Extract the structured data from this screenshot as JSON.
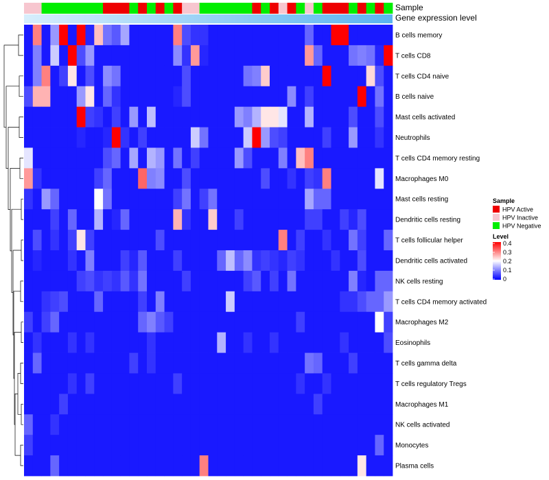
{
  "chart_data": {
    "type": "heatmap",
    "annotations": {
      "sample_track_label": "Sample",
      "expression_track_label": "Gene expression level",
      "sample_groups": [
        "HPV Active",
        "HPV Inactive",
        "HPV Negative"
      ],
      "sample_colors": {
        "HPV Active": "#ee0000",
        "HPV Inactive": "#f7c6cf",
        "HPV Negative": "#00ee00"
      },
      "column_groups": [
        "Inactive",
        "Inactive",
        "Negative",
        "Negative",
        "Negative",
        "Negative",
        "Negative",
        "Negative",
        "Negative",
        "Active",
        "Active",
        "Active",
        "Negative",
        "Active",
        "Negative",
        "Active",
        "Negative",
        "Active",
        "Inactive",
        "Inactive",
        "Negative",
        "Negative",
        "Negative",
        "Negative",
        "Negative",
        "Negative",
        "Active",
        "Negative",
        "Active",
        "Inactive",
        "Active",
        "Negative",
        "Inactive",
        "Negative",
        "Active",
        "Active",
        "Active",
        "Negative",
        "Active",
        "Negative",
        "Active",
        "Negative"
      ]
    },
    "rows": [
      "B cells memory",
      "T cells CD8",
      "T cells CD4 naive",
      "B cells naive",
      "Mast cells activated",
      "Neutrophils",
      "T cells CD4 memory resting",
      "Macrophages M0",
      "Mast cells resting",
      "Dendritic cells resting",
      "T cells follicular helper",
      "Dendritic cells activated",
      "NK cells resting",
      "T cells CD4 memory activated",
      "Macrophages M2",
      "Eosinophils",
      "T cells gamma delta",
      "T cells regulatory  Tregs",
      "Macrophages M1",
      "NK cells activated",
      "Monocytes",
      "Plasma cells"
    ],
    "values": [
      [
        0.02,
        0.3,
        0.02,
        0.12,
        0.4,
        0.02,
        0.4,
        0.03,
        0.25,
        0.09,
        0.07,
        0.13,
        0.02,
        0.02,
        0.02,
        0.02,
        0.02,
        0.3,
        0.06,
        0.04,
        0.04,
        0.02,
        0.02,
        0.02,
        0.02,
        0.02,
        0.02,
        0.02,
        0.02,
        0.02,
        0.02,
        0.02,
        0.08,
        0.02,
        0.02,
        0.4,
        0.4,
        0.02,
        0.02,
        0.02,
        0.02,
        0.02
      ],
      [
        0.02,
        0.1,
        0.02,
        0.16,
        0.02,
        0.4,
        0.06,
        0.12,
        0.02,
        0.02,
        0.02,
        0.02,
        0.02,
        0.02,
        0.02,
        0.02,
        0.02,
        0.11,
        0.04,
        0.28,
        0.03,
        0.02,
        0.02,
        0.02,
        0.02,
        0.02,
        0.02,
        0.02,
        0.02,
        0.02,
        0.02,
        0.02,
        0.28,
        0.08,
        0.02,
        0.02,
        0.02,
        0.09,
        0.1,
        0.09,
        0.03,
        0.4
      ],
      [
        0.02,
        0.1,
        0.3,
        0.02,
        0.05,
        0.22,
        0.02,
        0.06,
        0.02,
        0.11,
        0.09,
        0.02,
        0.02,
        0.02,
        0.02,
        0.02,
        0.02,
        0.02,
        0.06,
        0.02,
        0.02,
        0.02,
        0.02,
        0.02,
        0.02,
        0.09,
        0.1,
        0.24,
        0.02,
        0.02,
        0.02,
        0.02,
        0.02,
        0.02,
        0.4,
        0.02,
        0.02,
        0.02,
        0.02,
        0.23,
        0.06,
        0.02
      ],
      [
        0.06,
        0.26,
        0.26,
        0.02,
        0.02,
        0.02,
        0.12,
        0.22,
        0.02,
        0.08,
        0.04,
        0.02,
        0.02,
        0.02,
        0.02,
        0.02,
        0.02,
        0.03,
        0.06,
        0.02,
        0.02,
        0.02,
        0.02,
        0.02,
        0.02,
        0.02,
        0.02,
        0.02,
        0.02,
        0.02,
        0.11,
        0.02,
        0.05,
        0.02,
        0.02,
        0.02,
        0.02,
        0.02,
        0.4,
        0.02,
        0.09,
        0.02
      ],
      [
        0.02,
        0.02,
        0.02,
        0.02,
        0.02,
        0.02,
        0.4,
        0.05,
        0.04,
        0.02,
        0.05,
        0.02,
        0.12,
        0.02,
        0.15,
        0.02,
        0.02,
        0.02,
        0.02,
        0.02,
        0.02,
        0.02,
        0.02,
        0.02,
        0.12,
        0.1,
        0.14,
        0.22,
        0.22,
        0.18,
        0.02,
        0.02,
        0.14,
        0.02,
        0.02,
        0.02,
        0.02,
        0.06,
        0.02,
        0.02,
        0.06,
        0.02
      ],
      [
        0.02,
        0.02,
        0.02,
        0.02,
        0.02,
        0.02,
        0.03,
        0.02,
        0.02,
        0.03,
        0.4,
        0.04,
        0.02,
        0.05,
        0.02,
        0.02,
        0.02,
        0.02,
        0.02,
        0.16,
        0.09,
        0.02,
        0.02,
        0.02,
        0.02,
        0.16,
        0.4,
        0.12,
        0.06,
        0.05,
        0.02,
        0.02,
        0.02,
        0.02,
        0.05,
        0.02,
        0.02,
        0.12,
        0.02,
        0.02,
        0.04,
        0.02
      ],
      [
        0.18,
        0.02,
        0.02,
        0.02,
        0.02,
        0.02,
        0.02,
        0.02,
        0.02,
        0.06,
        0.08,
        0.02,
        0.13,
        0.02,
        0.14,
        0.12,
        0.02,
        0.09,
        0.02,
        0.05,
        0.02,
        0.02,
        0.02,
        0.02,
        0.12,
        0.06,
        0.02,
        0.02,
        0.02,
        0.1,
        0.02,
        0.25,
        0.3,
        0.02,
        0.02,
        0.02,
        0.02,
        0.02,
        0.02,
        0.02,
        0.02,
        0.02
      ],
      [
        0.28,
        0.04,
        0.02,
        0.02,
        0.02,
        0.02,
        0.02,
        0.02,
        0.05,
        0.08,
        0.02,
        0.02,
        0.02,
        0.32,
        0.1,
        0.11,
        0.02,
        0.02,
        0.06,
        0.02,
        0.02,
        0.02,
        0.02,
        0.02,
        0.02,
        0.02,
        0.02,
        0.06,
        0.02,
        0.02,
        0.04,
        0.02,
        0.05,
        0.04,
        0.3,
        0.02,
        0.02,
        0.02,
        0.02,
        0.02,
        0.18,
        0.02
      ],
      [
        0.04,
        0.02,
        0.12,
        0.08,
        0.02,
        0.02,
        0.02,
        0.02,
        0.2,
        0.09,
        0.02,
        0.02,
        0.02,
        0.02,
        0.02,
        0.02,
        0.02,
        0.05,
        0.09,
        0.02,
        0.05,
        0.09,
        0.02,
        0.02,
        0.02,
        0.02,
        0.02,
        0.02,
        0.02,
        0.02,
        0.02,
        0.02,
        0.13,
        0.08,
        0.08,
        0.02,
        0.02,
        0.02,
        0.02,
        0.02,
        0.02,
        0.02
      ],
      [
        0.02,
        0.02,
        0.02,
        0.05,
        0.02,
        0.08,
        0.02,
        0.02,
        0.14,
        0.02,
        0.03,
        0.08,
        0.02,
        0.02,
        0.02,
        0.02,
        0.02,
        0.26,
        0.04,
        0.02,
        0.02,
        0.24,
        0.02,
        0.02,
        0.05,
        0.02,
        0.02,
        0.02,
        0.02,
        0.02,
        0.02,
        0.02,
        0.05,
        0.05,
        0.02,
        0.02,
        0.05,
        0.03,
        0.06,
        0.02,
        0.02,
        0.02
      ],
      [
        0.02,
        0.06,
        0.02,
        0.04,
        0.02,
        0.05,
        0.22,
        0.05,
        0.02,
        0.02,
        0.02,
        0.02,
        0.02,
        0.02,
        0.02,
        0.06,
        0.02,
        0.02,
        0.02,
        0.02,
        0.02,
        0.02,
        0.02,
        0.02,
        0.02,
        0.02,
        0.02,
        0.02,
        0.02,
        0.3,
        0.02,
        0.05,
        0.02,
        0.02,
        0.04,
        0.02,
        0.02,
        0.09,
        0.05,
        0.02,
        0.02,
        0.08
      ],
      [
        0.02,
        0.03,
        0.02,
        0.02,
        0.02,
        0.04,
        0.02,
        0.1,
        0.02,
        0.02,
        0.02,
        0.05,
        0.03,
        0.07,
        0.02,
        0.02,
        0.02,
        0.05,
        0.02,
        0.02,
        0.02,
        0.02,
        0.08,
        0.15,
        0.08,
        0.11,
        0.04,
        0.05,
        0.04,
        0.03,
        0.05,
        0.04,
        0.02,
        0.02,
        0.02,
        0.04,
        0.02,
        0.02,
        0.06,
        0.02,
        0.02,
        0.02
      ],
      [
        0.02,
        0.02,
        0.02,
        0.02,
        0.02,
        0.02,
        0.05,
        0.06,
        0.04,
        0.05,
        0.04,
        0.07,
        0.04,
        0.09,
        0.02,
        0.02,
        0.02,
        0.02,
        0.05,
        0.02,
        0.02,
        0.02,
        0.02,
        0.02,
        0.02,
        0.05,
        0.07,
        0.02,
        0.05,
        0.02,
        0.09,
        0.02,
        0.02,
        0.02,
        0.02,
        0.02,
        0.02,
        0.1,
        0.03,
        0.02,
        0.08,
        0.08
      ],
      [
        0.02,
        0.02,
        0.04,
        0.05,
        0.06,
        0.02,
        0.02,
        0.02,
        0.08,
        0.02,
        0.02,
        0.02,
        0.02,
        0.05,
        0.02,
        0.1,
        0.02,
        0.02,
        0.02,
        0.02,
        0.02,
        0.02,
        0.02,
        0.16,
        0.02,
        0.02,
        0.02,
        0.02,
        0.02,
        0.02,
        0.02,
        0.02,
        0.02,
        0.02,
        0.02,
        0.02,
        0.04,
        0.04,
        0.06,
        0.08,
        0.08,
        0.12
      ],
      [
        0.05,
        0.02,
        0.05,
        0.08,
        0.02,
        0.02,
        0.02,
        0.02,
        0.02,
        0.02,
        0.02,
        0.02,
        0.02,
        0.08,
        0.1,
        0.07,
        0.05,
        0.02,
        0.02,
        0.02,
        0.02,
        0.02,
        0.02,
        0.02,
        0.02,
        0.02,
        0.02,
        0.02,
        0.02,
        0.02,
        0.02,
        0.05,
        0.02,
        0.02,
        0.02,
        0.02,
        0.02,
        0.02,
        0.02,
        0.02,
        0.2,
        0.05
      ],
      [
        0.02,
        0.04,
        0.02,
        0.02,
        0.02,
        0.04,
        0.02,
        0.04,
        0.02,
        0.02,
        0.02,
        0.02,
        0.02,
        0.02,
        0.04,
        0.02,
        0.02,
        0.02,
        0.02,
        0.02,
        0.02,
        0.02,
        0.14,
        0.02,
        0.02,
        0.04,
        0.02,
        0.02,
        0.04,
        0.02,
        0.02,
        0.02,
        0.02,
        0.02,
        0.02,
        0.02,
        0.04,
        0.02,
        0.02,
        0.02,
        0.02,
        0.06
      ],
      [
        0.02,
        0.08,
        0.02,
        0.02,
        0.02,
        0.02,
        0.02,
        0.02,
        0.02,
        0.02,
        0.02,
        0.02,
        0.05,
        0.02,
        0.04,
        0.02,
        0.02,
        0.02,
        0.02,
        0.02,
        0.02,
        0.02,
        0.02,
        0.02,
        0.02,
        0.02,
        0.02,
        0.02,
        0.02,
        0.02,
        0.02,
        0.02,
        0.09,
        0.08,
        0.02,
        0.02,
        0.02,
        0.05,
        0.02,
        0.02,
        0.02,
        0.02
      ],
      [
        0.02,
        0.02,
        0.02,
        0.02,
        0.02,
        0.04,
        0.02,
        0.05,
        0.02,
        0.02,
        0.02,
        0.02,
        0.02,
        0.02,
        0.02,
        0.02,
        0.02,
        0.05,
        0.02,
        0.02,
        0.02,
        0.02,
        0.02,
        0.02,
        0.02,
        0.02,
        0.02,
        0.02,
        0.02,
        0.02,
        0.02,
        0.04,
        0.02,
        0.02,
        0.04,
        0.02,
        0.02,
        0.02,
        0.02,
        0.02,
        0.02,
        0.02
      ],
      [
        0.02,
        0.02,
        0.02,
        0.02,
        0.05,
        0.02,
        0.02,
        0.02,
        0.02,
        0.02,
        0.02,
        0.02,
        0.02,
        0.02,
        0.02,
        0.02,
        0.02,
        0.02,
        0.02,
        0.02,
        0.02,
        0.02,
        0.02,
        0.02,
        0.02,
        0.02,
        0.02,
        0.02,
        0.02,
        0.02,
        0.02,
        0.02,
        0.02,
        0.05,
        0.02,
        0.02,
        0.02,
        0.02,
        0.02,
        0.02,
        0.02,
        0.02
      ],
      [
        0.08,
        0.02,
        0.02,
        0.04,
        0.02,
        0.02,
        0.02,
        0.02,
        0.02,
        0.02,
        0.02,
        0.02,
        0.02,
        0.02,
        0.02,
        0.02,
        0.02,
        0.02,
        0.02,
        0.02,
        0.02,
        0.02,
        0.02,
        0.02,
        0.02,
        0.02,
        0.02,
        0.02,
        0.02,
        0.02,
        0.02,
        0.02,
        0.02,
        0.02,
        0.02,
        0.02,
        0.02,
        0.02,
        0.02,
        0.02,
        0.02,
        0.02
      ],
      [
        0.05,
        0.02,
        0.02,
        0.02,
        0.02,
        0.02,
        0.02,
        0.02,
        0.02,
        0.02,
        0.02,
        0.02,
        0.02,
        0.02,
        0.02,
        0.02,
        0.02,
        0.02,
        0.02,
        0.02,
        0.02,
        0.02,
        0.02,
        0.02,
        0.02,
        0.02,
        0.02,
        0.02,
        0.02,
        0.02,
        0.02,
        0.02,
        0.02,
        0.02,
        0.02,
        0.02,
        0.02,
        0.02,
        0.02,
        0.02,
        0.08,
        0.02
      ],
      [
        0.02,
        0.02,
        0.02,
        0.08,
        0.02,
        0.02,
        0.02,
        0.02,
        0.02,
        0.02,
        0.02,
        0.02,
        0.02,
        0.02,
        0.02,
        0.02,
        0.02,
        0.02,
        0.02,
        0.02,
        0.3,
        0.02,
        0.02,
        0.02,
        0.02,
        0.02,
        0.02,
        0.02,
        0.02,
        0.02,
        0.02,
        0.02,
        0.02,
        0.02,
        0.02,
        0.02,
        0.02,
        0.02,
        0.22,
        0.02,
        0.02,
        0.02
      ]
    ],
    "color_scale": {
      "min": 0,
      "mid": 0.2,
      "max": 0.4,
      "low": "#0000ff",
      "middle": "#ffffff",
      "high": "#ff0000"
    },
    "legend": {
      "sample_title": "Sample",
      "sample_entries": [
        "HPV Active",
        "HPV Inactive",
        "HPV Negative"
      ],
      "level_title": "Level",
      "level_ticks": [
        "0.4",
        "0.3",
        "0.2",
        "0.1",
        "0"
      ]
    }
  }
}
